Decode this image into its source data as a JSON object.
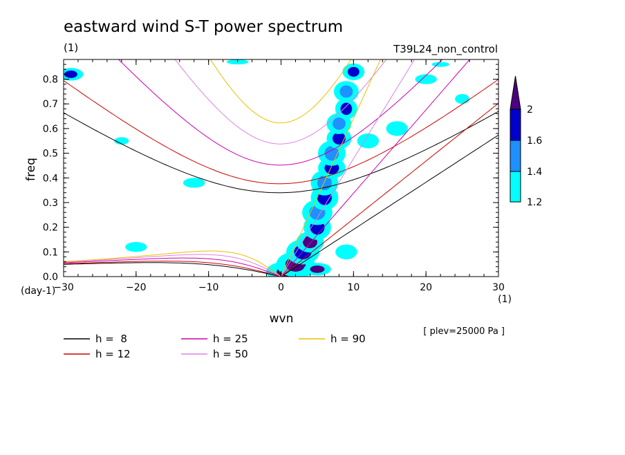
{
  "chart_data": {
    "type": "heatmap",
    "title": "eastward wind S-T power spectrum",
    "units_label": "(1)",
    "run_label": "T39L24_non_control",
    "xlabel": "wvn",
    "ylabel": "freq",
    "x_unit": "(1)",
    "y_unit": "(day-1)",
    "level_label": "[ plev=25000 Pa ]",
    "xlim": [
      -30,
      30
    ],
    "ylim": [
      0,
      0.88
    ],
    "x_ticks": [
      -30,
      -20,
      -10,
      0,
      10,
      20,
      30
    ],
    "y_ticks": [
      0.0,
      0.1,
      0.2,
      0.3,
      0.4,
      0.5,
      0.6,
      0.7,
      0.8
    ],
    "x_tick_labels": [
      "−30",
      "−20",
      "−10",
      "0",
      "10",
      "20",
      "30"
    ],
    "y_tick_labels": [
      "0.0",
      "0.1",
      "0.2",
      "0.3",
      "0.4",
      "0.5",
      "0.6",
      "0.7",
      "0.8"
    ],
    "colorbar": {
      "levels": [
        1.2,
        1.4,
        1.6,
        2
      ],
      "level_labels": [
        "1.2",
        "1.4",
        "1.6",
        "2"
      ],
      "colors": [
        "#00ffff",
        "#1e90ff",
        "#0000cd",
        "#4b0082"
      ]
    },
    "dispersion_curves": [
      {
        "name": "h =  8",
        "h": 8,
        "color": "#000000"
      },
      {
        "name": "h = 12",
        "h": 12,
        "color": "#cc0000"
      },
      {
        "name": "h = 25",
        "h": 25,
        "color": "#cc00aa"
      },
      {
        "name": "h = 50",
        "h": 50,
        "color": "#e080e0"
      },
      {
        "name": "h = 90",
        "h": 90,
        "color": "#e8c000"
      }
    ],
    "spectral_blobs": [
      {
        "x": 1,
        "y": 0.02,
        "level": 4,
        "rx": 1.6,
        "ry": 0.025
      },
      {
        "x": 2,
        "y": 0.05,
        "level": 4,
        "rx": 1.4,
        "ry": 0.03
      },
      {
        "x": 3,
        "y": 0.1,
        "level": 3,
        "rx": 1.2,
        "ry": 0.03
      },
      {
        "x": 4,
        "y": 0.14,
        "level": 4,
        "rx": 1.0,
        "ry": 0.025
      },
      {
        "x": 5,
        "y": 0.2,
        "level": 3,
        "rx": 1.0,
        "ry": 0.03
      },
      {
        "x": 5,
        "y": 0.26,
        "level": 2,
        "rx": 1.1,
        "ry": 0.03
      },
      {
        "x": 6,
        "y": 0.32,
        "level": 3,
        "rx": 1.0,
        "ry": 0.03
      },
      {
        "x": 6,
        "y": 0.38,
        "level": 2,
        "rx": 1.0,
        "ry": 0.03
      },
      {
        "x": 7,
        "y": 0.44,
        "level": 3,
        "rx": 1.0,
        "ry": 0.025
      },
      {
        "x": 7,
        "y": 0.5,
        "level": 2,
        "rx": 1.0,
        "ry": 0.03
      },
      {
        "x": 8,
        "y": 0.56,
        "level": 3,
        "rx": 0.9,
        "ry": 0.025
      },
      {
        "x": 8,
        "y": 0.62,
        "level": 2,
        "rx": 0.9,
        "ry": 0.025
      },
      {
        "x": 9,
        "y": 0.68,
        "level": 3,
        "rx": 0.8,
        "ry": 0.025
      },
      {
        "x": 9,
        "y": 0.75,
        "level": 2,
        "rx": 0.9,
        "ry": 0.025
      },
      {
        "x": 10,
        "y": 0.83,
        "level": 3,
        "rx": 0.8,
        "ry": 0.02
      },
      {
        "x": 5,
        "y": 0.03,
        "level": 4,
        "rx": 1.0,
        "ry": 0.015
      },
      {
        "x": 9,
        "y": 0.1,
        "level": 1,
        "rx": 1.5,
        "ry": 0.03
      },
      {
        "x": 12,
        "y": 0.55,
        "level": 1,
        "rx": 1.5,
        "ry": 0.03
      },
      {
        "x": 16,
        "y": 0.6,
        "level": 1,
        "rx": 1.5,
        "ry": 0.03
      },
      {
        "x": -29,
        "y": 0.82,
        "level": 3,
        "rx": 0.9,
        "ry": 0.015
      },
      {
        "x": -22,
        "y": 0.55,
        "level": 1,
        "rx": 1.0,
        "ry": 0.015
      },
      {
        "x": -20,
        "y": 0.12,
        "level": 1,
        "rx": 1.5,
        "ry": 0.02
      },
      {
        "x": -12,
        "y": 0.38,
        "level": 1,
        "rx": 1.5,
        "ry": 0.02
      },
      {
        "x": -6,
        "y": 0.87,
        "level": 1,
        "rx": 1.5,
        "ry": 0.01
      },
      {
        "x": 20,
        "y": 0.8,
        "level": 1,
        "rx": 1.5,
        "ry": 0.02
      },
      {
        "x": 22,
        "y": 0.86,
        "level": 1,
        "rx": 1.2,
        "ry": 0.01
      },
      {
        "x": 25,
        "y": 0.72,
        "level": 1,
        "rx": 1.0,
        "ry": 0.02
      }
    ]
  }
}
